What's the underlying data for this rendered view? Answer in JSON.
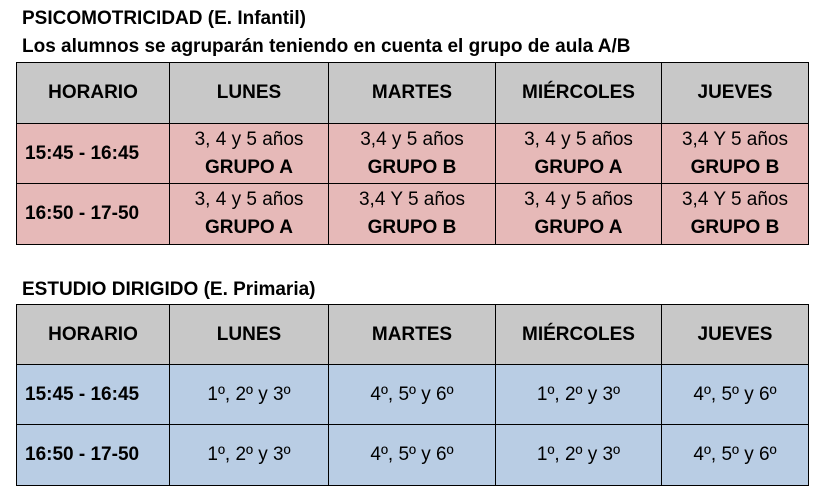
{
  "psico": {
    "title": "PSICOMOTRICIDAD (E. Infantil)",
    "subtitle": "Los alumnos se agruparán teniendo en cuenta el grupo de aula A/B",
    "headers": [
      "HORARIO",
      "LUNES",
      "MARTES",
      "MIÉRCOLES",
      "JUEVES"
    ],
    "rows": [
      {
        "time": "15:45 - 16:45",
        "cells": [
          {
            "ages": "3, 4 y 5 años",
            "group": "GRUPO A"
          },
          {
            "ages": "3,4 y 5 años",
            "group": "GRUPO B"
          },
          {
            "ages": "3, 4 y 5 años",
            "group": "GRUPO A"
          },
          {
            "ages": "3,4 Y 5 años",
            "group": "GRUPO B"
          }
        ]
      },
      {
        "time": "16:50 - 17-50",
        "cells": [
          {
            "ages": "3, 4 y 5 años",
            "group": "GRUPO A"
          },
          {
            "ages": "3,4 Y 5 años",
            "group": "GRUPO B"
          },
          {
            "ages": "3, 4 y 5 años",
            "group": "GRUPO A"
          },
          {
            "ages": "3,4 Y 5 años",
            "group": "GRUPO B"
          }
        ]
      }
    ]
  },
  "estudio": {
    "title": "ESTUDIO DIRIGIDO (E. Primaria)",
    "headers": [
      "HORARIO",
      "LUNES",
      "MARTES",
      "MIÉRCOLES",
      "JUEVES"
    ],
    "rows": [
      {
        "time": "15:45 - 16:45",
        "cells": [
          "1º, 2º y 3º",
          "4º, 5º y 6º",
          "1º, 2º y 3º",
          "4º, 5º y 6º"
        ]
      },
      {
        "time": "16:50 - 17-50",
        "cells": [
          "1º, 2º y 3º",
          "4º, 5º y 6º",
          "1º, 2º y 3º",
          "4º, 5º y 6º"
        ]
      }
    ]
  },
  "colors": {
    "header_bg": "#c8c8c8",
    "psico_row_bg": "#e6b9b8",
    "estudio_row_bg": "#b9cde4"
  }
}
